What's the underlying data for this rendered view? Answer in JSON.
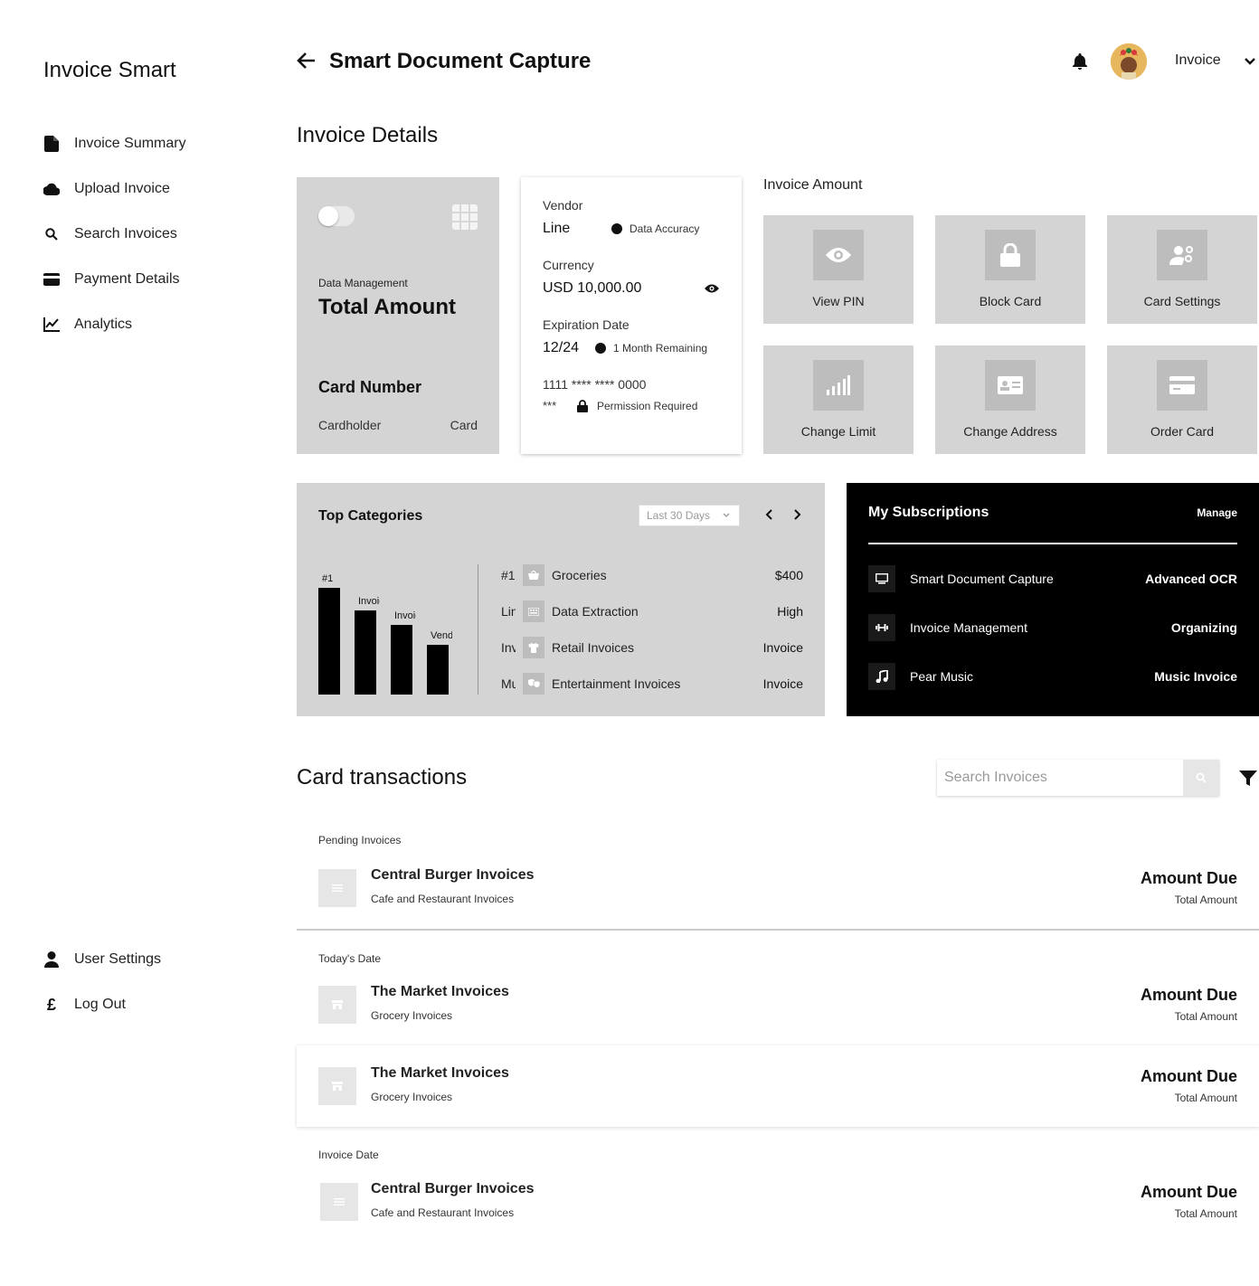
{
  "sidebar": {
    "brand": "Invoice Smart",
    "items": [
      {
        "label": "Invoice Summary",
        "icon": "document-icon"
      },
      {
        "label": "Upload Invoice",
        "icon": "cloud-icon"
      },
      {
        "label": "Search Invoices",
        "icon": "search-icon"
      },
      {
        "label": "Payment Details",
        "icon": "credit-card-icon"
      },
      {
        "label": "Analytics",
        "icon": "line-chart-icon"
      }
    ],
    "bottom": [
      {
        "label": "User Settings",
        "icon": "person-icon"
      },
      {
        "label": "Log Out",
        "icon": "pound-icon"
      }
    ]
  },
  "header": {
    "title": "Smart Document Capture",
    "user_label": "Invoice"
  },
  "invoice_details": {
    "title": "Invoice Details",
    "card": {
      "subtitle": "Data Management",
      "title": "Total Amount",
      "number_label": "Card Number",
      "holder_label": "Cardholder",
      "card_label": "Card"
    },
    "vendor": {
      "vendor_label": "Vendor",
      "vendor_value": "Line",
      "vendor_note": "Data Accuracy",
      "currency_label": "Currency",
      "currency_value": "USD 10,000.00",
      "expiry_label": "Expiration Date",
      "expiry_value": "12/24",
      "expiry_note": "1 Month Remaining",
      "card_number": "1111 **** **** 0000",
      "cvv": "***",
      "permission": "Permission Required"
    },
    "actions_title": "Invoice Amount",
    "actions": [
      {
        "label": "View PIN",
        "icon": "eye-icon"
      },
      {
        "label": "Block Card",
        "icon": "lock-icon"
      },
      {
        "label": "Card Settings",
        "icon": "user-settings-icon"
      },
      {
        "label": "Change Limit",
        "icon": "signal-bars-icon"
      },
      {
        "label": "Change Address",
        "icon": "id-card-icon"
      },
      {
        "label": "Order Card",
        "icon": "credit-card-icon"
      }
    ]
  },
  "top_categories": {
    "title": "Top Categories",
    "range": "Last 30 Days",
    "bars": [
      {
        "label": "#1",
        "value": 100
      },
      {
        "label": "Invoice",
        "value": 79
      },
      {
        "label": "Invoice",
        "value": 65
      },
      {
        "label": "Vendor",
        "value": 47
      }
    ],
    "rows": [
      {
        "rank": "#1",
        "name": "Groceries",
        "value": "$400",
        "icon": "basket-icon"
      },
      {
        "rank": "Line",
        "name": "Data Extraction",
        "value": "High",
        "icon": "keyboard-icon"
      },
      {
        "rank": "Invoice",
        "name": "Retail Invoices",
        "value": "Invoice",
        "icon": "shirt-icon"
      },
      {
        "rank": "Music",
        "name": "Entertainment Invoices",
        "value": "Invoice",
        "icon": "masks-icon"
      }
    ]
  },
  "subscriptions": {
    "title": "My Subscriptions",
    "manage": "Manage",
    "items": [
      {
        "name": "Smart Document Capture",
        "tag": "Advanced OCR",
        "icon": "monitor-icon"
      },
      {
        "name": "Invoice Management",
        "tag": "Organizing",
        "icon": "dumbbell-icon"
      },
      {
        "name": "Pear Music",
        "tag": "Music Invoice",
        "icon": "music-note-icon"
      }
    ]
  },
  "transactions": {
    "title": "Card transactions",
    "search_placeholder": "Search Invoices",
    "groups": [
      {
        "label": "Pending Invoices"
      },
      {
        "label": "Today's Date"
      },
      {
        "label": "Invoice Date"
      }
    ],
    "items": [
      {
        "name": "Central Burger Invoices",
        "category": "Cafe and Restaurant Invoices",
        "amount": "Amount Due",
        "sub": "Total Amount"
      },
      {
        "name": "The Market Invoices",
        "category": "Grocery Invoices",
        "amount": "Amount Due",
        "sub": "Total Amount"
      },
      {
        "name": "The Market Invoices",
        "category": "Grocery Invoices",
        "amount": "Amount Due",
        "sub": "Total Amount"
      },
      {
        "name": "Central Burger Invoices",
        "category": "Cafe and Restaurant Invoices",
        "amount": "Amount Due",
        "sub": "Total Amount"
      }
    ]
  }
}
